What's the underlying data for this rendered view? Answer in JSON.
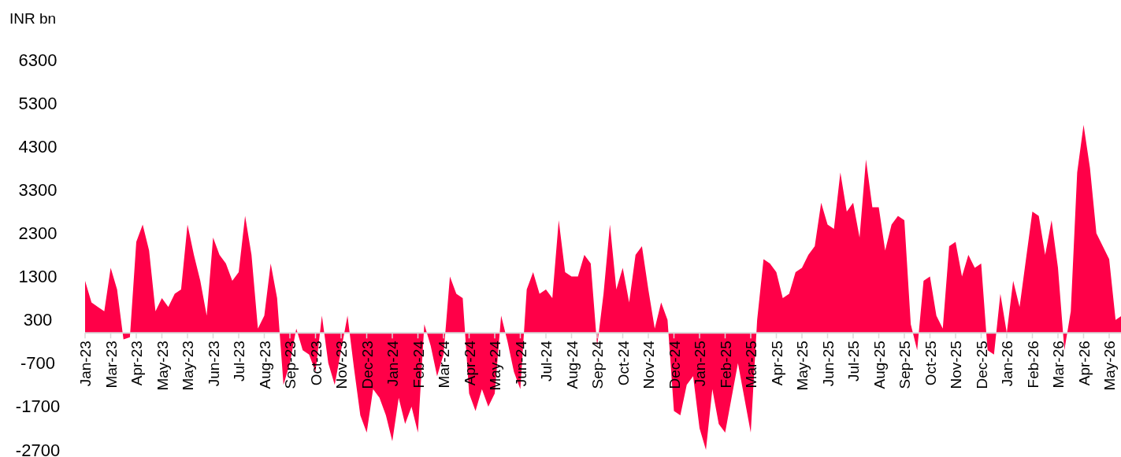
{
  "chart_data": {
    "type": "area",
    "ylabel": "INR bn",
    "categories": [
      "Jan-23",
      null,
      null,
      null,
      "Mar-23",
      null,
      null,
      null,
      "Apr-23",
      null,
      null,
      null,
      "May-23",
      null,
      null,
      null,
      "May-23",
      null,
      null,
      null,
      "Jun-23",
      null,
      null,
      null,
      "Jul-23",
      null,
      null,
      null,
      "Aug-23",
      null,
      null,
      null,
      "Sep-23",
      null,
      null,
      null,
      "Oct-23",
      null,
      null,
      null,
      "Nov-23",
      null,
      null,
      null,
      "Dec-23",
      null,
      null,
      null,
      "Jan-24",
      null,
      null,
      null,
      "Feb-24",
      null,
      null,
      null,
      "Mar-24",
      null,
      null,
      null,
      "Apr-24",
      null,
      null,
      null,
      "May-24",
      null,
      null,
      null,
      "Jun-24",
      null,
      null,
      null,
      "Jul-24",
      null,
      null,
      null,
      "Aug-24",
      null,
      null,
      null,
      "Sep-24",
      null,
      null,
      null,
      "Oct-24",
      null,
      null,
      null,
      "Nov-24",
      null,
      null,
      null,
      "Dec-24",
      null,
      null,
      null,
      "Jan-25",
      null,
      null,
      null,
      "Feb-25",
      null,
      null,
      null,
      "Mar-25",
      null,
      null,
      null,
      "Apr-25",
      null,
      null,
      null,
      "May-25",
      null,
      null,
      null,
      "Jun-25",
      null,
      null,
      null,
      "Jul-25",
      null,
      null,
      null,
      "Aug-25",
      null,
      null,
      null,
      "Sep-25",
      null,
      null,
      null,
      "Oct-25",
      null,
      null,
      null,
      "Nov-25",
      null,
      null,
      null,
      "Dec-25",
      null,
      null,
      null,
      "Jan-26",
      null,
      null,
      null,
      "Feb-26",
      null,
      null,
      null,
      "Mar-26",
      null,
      null,
      null,
      "Apr-26",
      null,
      null,
      null,
      "May-26",
      null,
      null
    ],
    "series": [
      {
        "color": "#ff0048",
        "values": [
          1200,
          700,
          600,
          500,
          1500,
          1000,
          -150,
          -100,
          2100,
          2500,
          1900,
          500,
          800,
          600,
          900,
          1000,
          2500,
          1800,
          1200,
          400,
          2200,
          1800,
          1600,
          1200,
          1400,
          2700,
          1800,
          100,
          400,
          1600,
          800,
          -1200,
          -700,
          100,
          -400,
          -500,
          -900,
          400,
          -700,
          -1200,
          -400,
          400,
          -800,
          -1900,
          -2300,
          -1300,
          -1500,
          -1900,
          -2500,
          -1500,
          -2100,
          -1700,
          -2300,
          200,
          -300,
          -1000,
          -500,
          1300,
          900,
          800,
          -1400,
          -1800,
          -1300,
          -1700,
          -1400,
          400,
          -200,
          -900,
          -1300,
          1000,
          1400,
          900,
          1000,
          800,
          2600,
          1400,
          1300,
          1300,
          1800,
          1600,
          -300,
          900,
          2500,
          1000,
          1500,
          700,
          1800,
          2000,
          1000,
          100,
          700,
          300,
          -1800,
          -1900,
          -1200,
          -1000,
          -2200,
          -2700,
          -1300,
          -2100,
          -2300,
          -1500,
          -700,
          -1500,
          -2300,
          300,
          1700,
          1600,
          1400,
          800,
          900,
          1400,
          1500,
          1800,
          2000,
          3000,
          2500,
          2400,
          3700,
          2800,
          3000,
          2200,
          4000,
          2900,
          2900,
          1900,
          2500,
          2700,
          2600,
          200,
          -400,
          1200,
          1300,
          400,
          100,
          2000,
          2100,
          1300,
          1800,
          1500,
          1600,
          -400,
          -500,
          900,
          0,
          1200,
          600,
          1700,
          2800,
          2700,
          1800,
          2600,
          1500,
          -400,
          500,
          3700,
          4800,
          3800,
          2300,
          2000,
          1700,
          300,
          400
        ]
      }
    ],
    "ylim": [
      -2700,
      6300
    ],
    "yticks": [
      -2700,
      -1700,
      -700,
      300,
      1300,
      2300,
      3300,
      4300,
      5300,
      6300
    ]
  }
}
